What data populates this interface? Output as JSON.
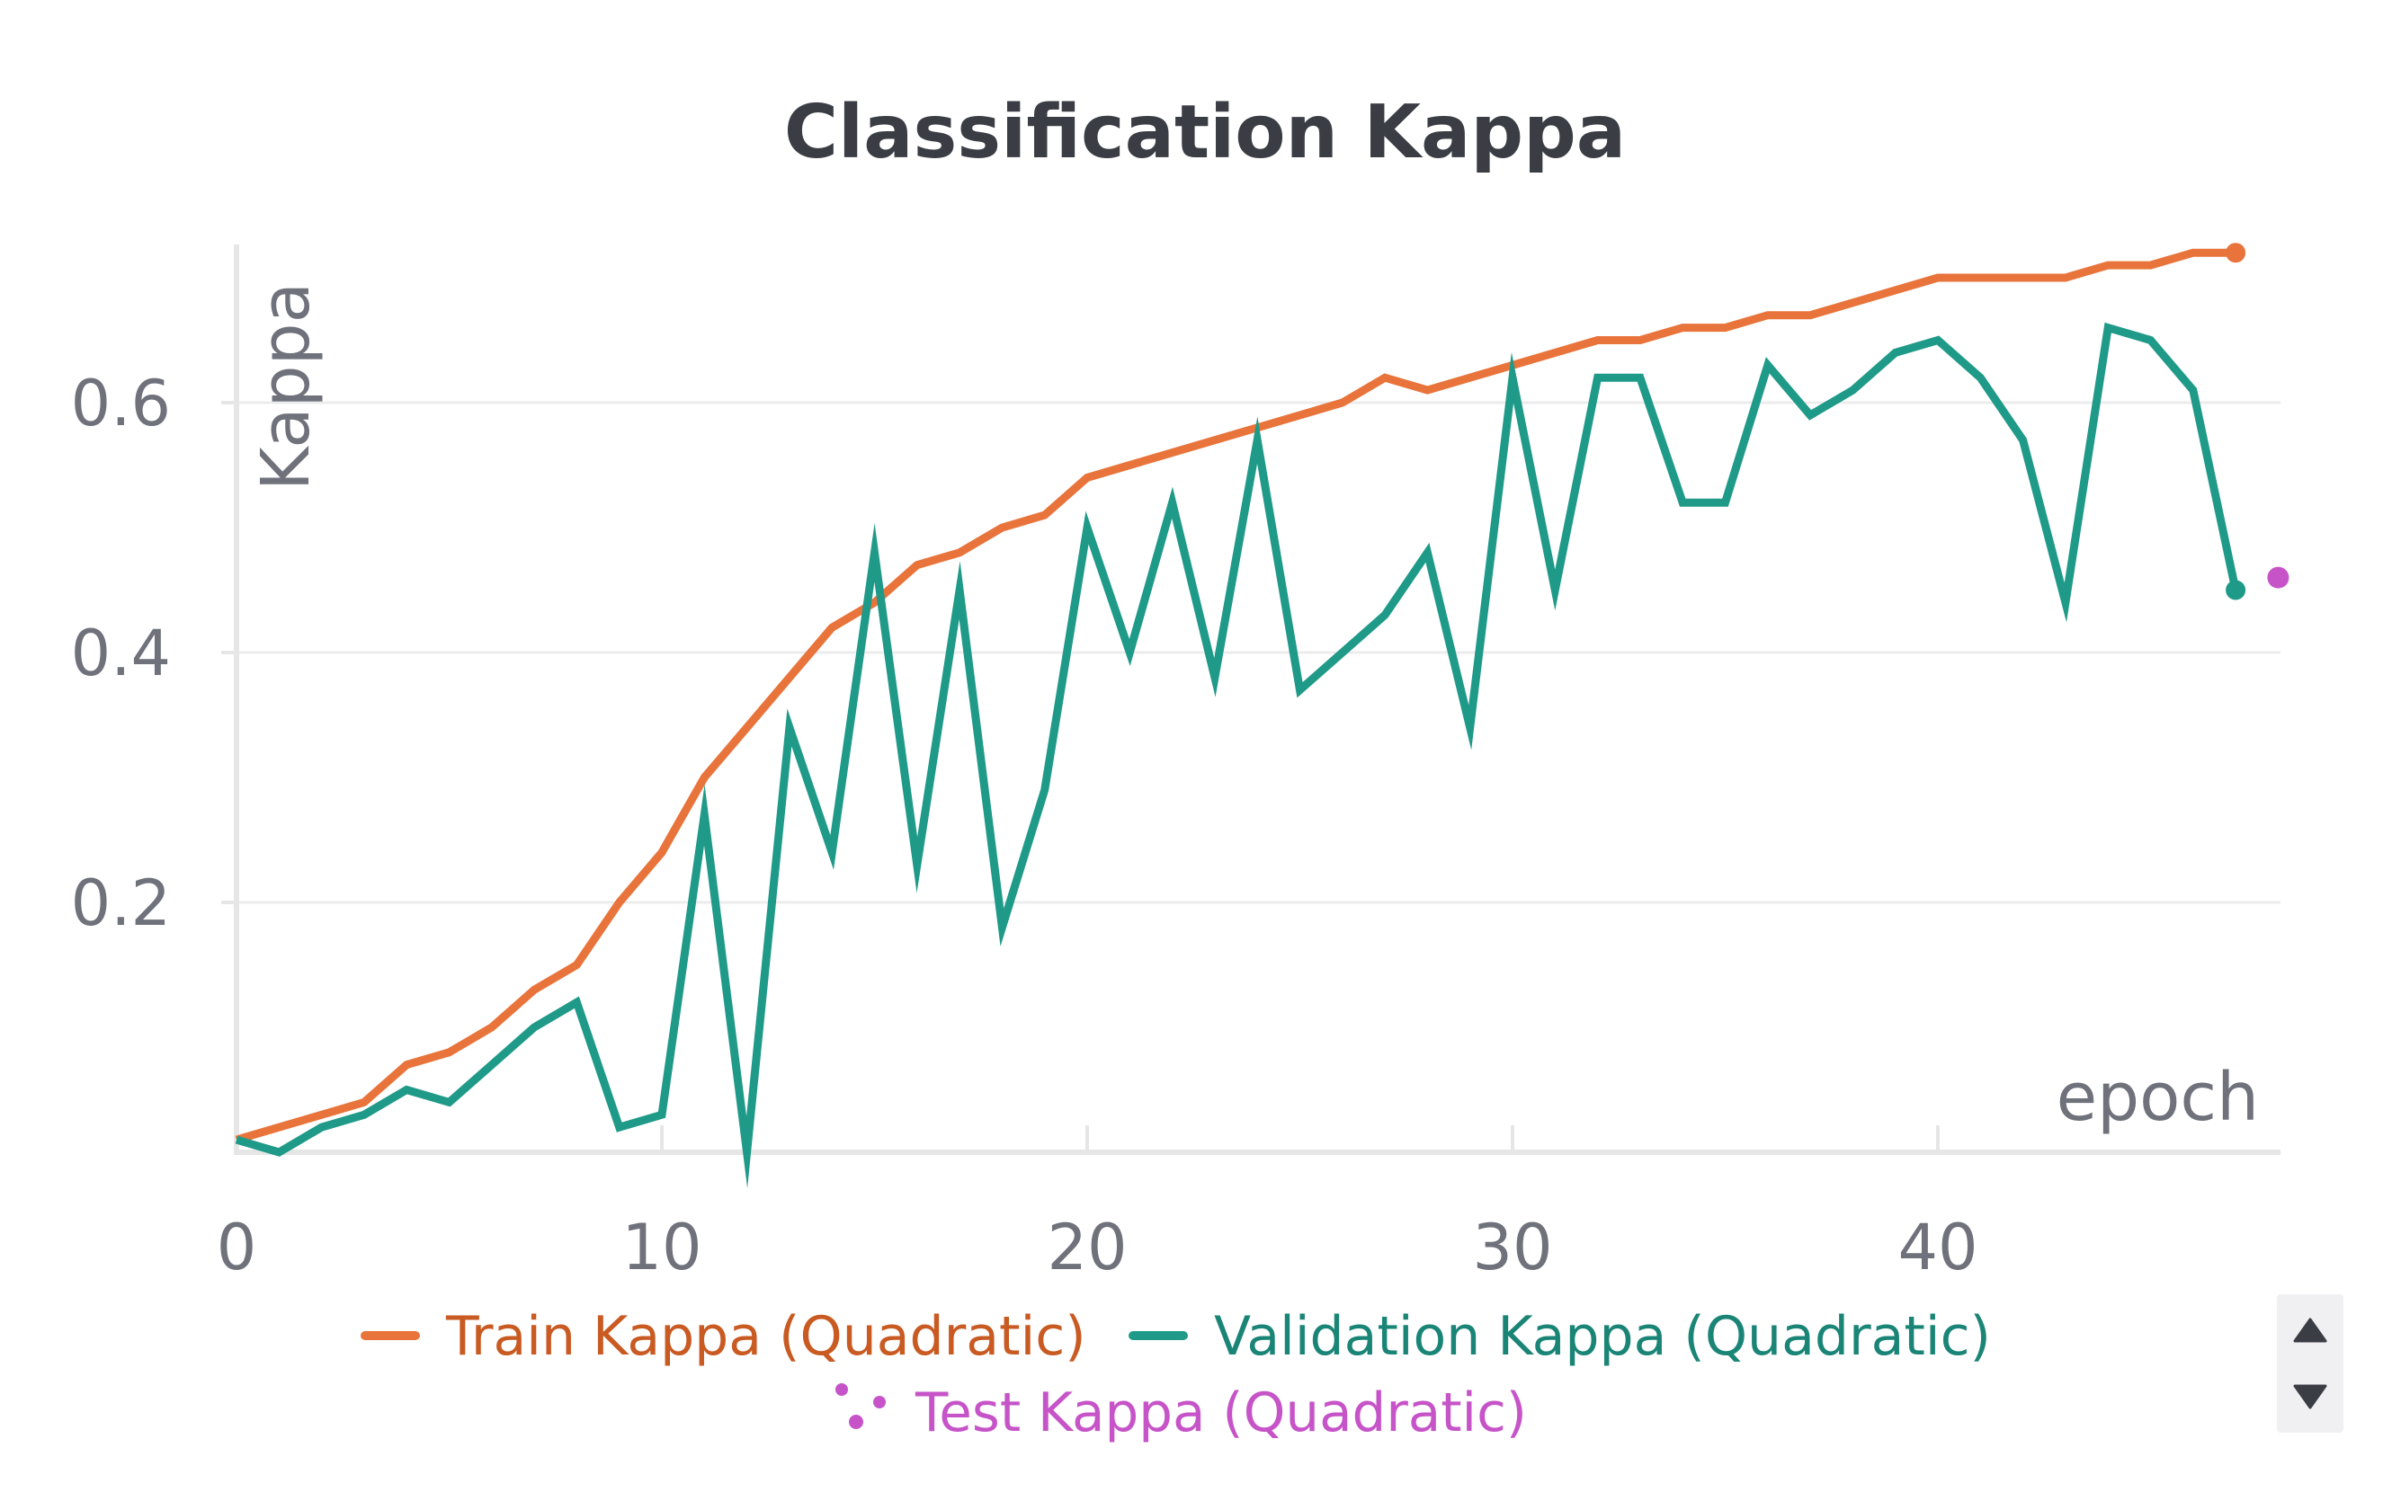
{
  "chart_data": {
    "type": "line",
    "title": "Classification Kappa",
    "xlabel": "epoch",
    "ylabel": "Kappa",
    "xlim": [
      0,
      48
    ],
    "ylim": [
      0,
      0.72
    ],
    "xticks": [
      0,
      10,
      20,
      30,
      40
    ],
    "yticks": [
      0.2,
      0.4,
      0.6
    ],
    "grid": true,
    "legend_position": "bottom",
    "series": [
      {
        "name": "Train Kappa (Quadratic)",
        "color": "#e8743b",
        "style": "line",
        "x": [
          0,
          1,
          2,
          3,
          4,
          5,
          6,
          7,
          8,
          9,
          10,
          11,
          12,
          13,
          14,
          15,
          16,
          17,
          18,
          19,
          20,
          21,
          22,
          23,
          24,
          25,
          26,
          27,
          28,
          29,
          30,
          31,
          32,
          33,
          34,
          35,
          36,
          37,
          38,
          39,
          40,
          41,
          42,
          43,
          44,
          45,
          46,
          47
        ],
        "values": [
          0.01,
          0.02,
          0.03,
          0.04,
          0.07,
          0.08,
          0.1,
          0.13,
          0.15,
          0.2,
          0.24,
          0.3,
          0.34,
          0.38,
          0.42,
          0.44,
          0.47,
          0.48,
          0.5,
          0.51,
          0.54,
          0.55,
          0.56,
          0.57,
          0.58,
          0.59,
          0.6,
          0.62,
          0.61,
          0.62,
          0.63,
          0.64,
          0.65,
          0.65,
          0.66,
          0.66,
          0.67,
          0.67,
          0.68,
          0.69,
          0.7,
          0.7,
          0.7,
          0.7,
          0.71,
          0.71,
          0.72,
          0.72
        ]
      },
      {
        "name": "Validation Kappa (Quadratic)",
        "color": "#1f9a88",
        "style": "line",
        "x": [
          0,
          1,
          2,
          3,
          4,
          5,
          6,
          7,
          8,
          9,
          10,
          11,
          12,
          13,
          14,
          15,
          16,
          17,
          18,
          19,
          20,
          21,
          22,
          23,
          24,
          25,
          26,
          27,
          28,
          29,
          30,
          31,
          32,
          33,
          34,
          35,
          36,
          37,
          38,
          39,
          40,
          41,
          42,
          43,
          44,
          45,
          46,
          47
        ],
        "values": [
          0.01,
          0.0,
          0.02,
          0.03,
          0.05,
          0.04,
          0.07,
          0.1,
          0.12,
          0.02,
          0.03,
          0.27,
          0.0,
          0.34,
          0.24,
          0.48,
          0.23,
          0.45,
          0.18,
          0.29,
          0.5,
          0.4,
          0.52,
          0.38,
          0.57,
          0.37,
          0.4,
          0.43,
          0.48,
          0.34,
          0.62,
          0.45,
          0.62,
          0.62,
          0.52,
          0.52,
          0.63,
          0.59,
          0.61,
          0.64,
          0.65,
          0.62,
          0.57,
          0.44,
          0.66,
          0.65,
          0.61,
          0.45
        ]
      },
      {
        "name": "Test Kappa (Quadratic)",
        "color": "#c654c8",
        "style": "point",
        "x": [
          48
        ],
        "values": [
          0.46
        ]
      }
    ]
  }
}
